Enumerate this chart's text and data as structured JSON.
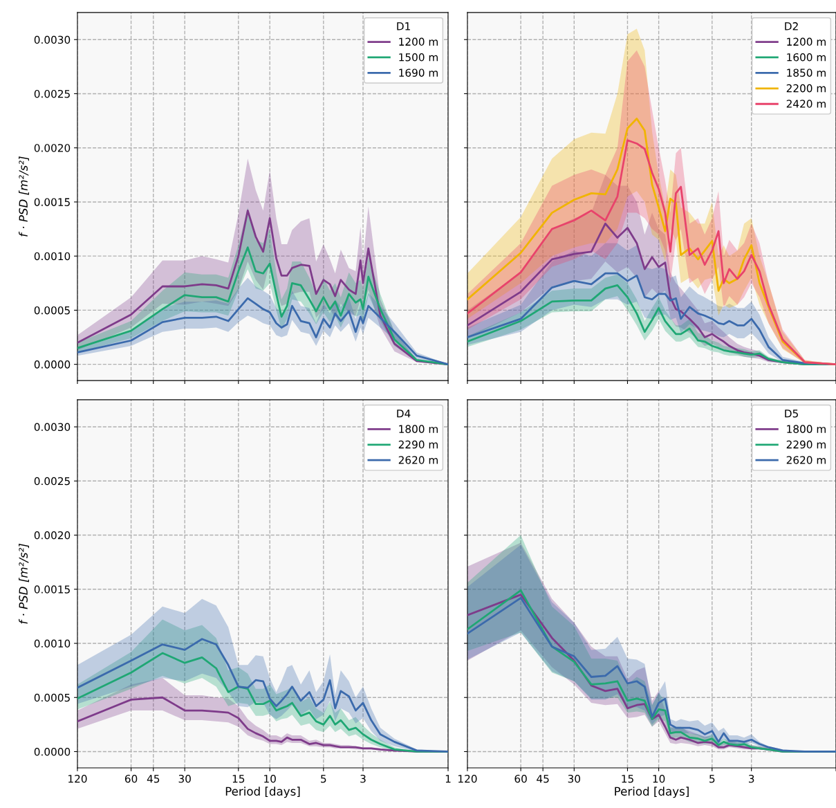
{
  "chart_data": [
    {
      "type": "line",
      "legend_title": "D1",
      "ylabel": "f · PSD [m²/s²]",
      "log": "x",
      "grid": true,
      "legend": "top right",
      "tick_labels": "y",
      "x": [
        120,
        60,
        40,
        30,
        24,
        20,
        17.1,
        15,
        13.3,
        12,
        10.9,
        10,
        9.2,
        8.6,
        8,
        7.5,
        6.7,
        6,
        5.5,
        5,
        4.6,
        4.3,
        4,
        3.6,
        3.3,
        3.1,
        3,
        2.8,
        2.4,
        2,
        1.5,
        1
      ],
      "xlim": [
        120,
        1
      ],
      "xticks": [
        {
          "value": 120,
          "label": null
        },
        {
          "value": 60,
          "label": null
        },
        {
          "value": 45,
          "label": null
        },
        {
          "value": 30,
          "label": null
        },
        {
          "value": 15,
          "label": null
        },
        {
          "value": 10,
          "label": null
        },
        {
          "value": 5,
          "label": null
        },
        {
          "value": 3,
          "label": null
        },
        {
          "value": 1,
          "label": null
        }
      ],
      "ylim": [
        -0.00015,
        0.00325
      ],
      "yticks": [
        {
          "value": 0,
          "label": "0.0000"
        },
        {
          "value": 0.0005,
          "label": "0.0005"
        },
        {
          "value": 0.001,
          "label": "0.0010"
        },
        {
          "value": 0.0015,
          "label": "0.0015"
        },
        {
          "value": 0.002,
          "label": "0.0020"
        },
        {
          "value": 0.0025,
          "label": "0.0025"
        },
        {
          "value": 0.003,
          "label": "0.0030"
        }
      ],
      "series": [
        {
          "name": "1200 m",
          "color": "#7e3b8a",
          "values": [
            0.0002,
            0.00046,
            0.00072,
            0.00072,
            0.00074,
            0.00073,
            0.0007,
            0.001,
            0.00142,
            0.00118,
            0.00104,
            0.00135,
            0.00098,
            0.00082,
            0.00082,
            0.00089,
            0.00092,
            0.00091,
            0.00065,
            0.00078,
            0.00074,
            0.00063,
            0.00078,
            0.00069,
            0.00065,
            0.00096,
            0.00075,
            0.00107,
            0.00045,
            0.00019,
            3e-05,
            0
          ],
          "upper": [
            0.00027,
            0.00062,
            0.00096,
            0.00096,
            0.001,
            0.00097,
            0.00094,
            0.00139,
            0.0019,
            0.00161,
            0.00142,
            0.00179,
            0.00135,
            0.00111,
            0.00111,
            0.00124,
            0.00132,
            0.00135,
            0.00095,
            0.00111,
            0.00097,
            0.00084,
            0.00106,
            0.00089,
            0.00086,
            0.00127,
            0.00095,
            0.00146,
            0.0006,
            0.0003,
            4e-05,
            0
          ],
          "lower": [
            0.00013,
            0.00034,
            0.00056,
            0.00055,
            0.00058,
            0.00056,
            0.00054,
            0.00069,
            0.00095,
            0.00078,
            0.00069,
            0.00095,
            0.00067,
            0.00054,
            0.00056,
            0.00065,
            0.00067,
            0.00067,
            0.00043,
            0.00051,
            0.00051,
            0.00043,
            0.00056,
            0.00047,
            0.00045,
            0.0006,
            0.00054,
            0.00069,
            0.00034,
            0.00012,
            2e-05,
            0
          ]
        },
        {
          "name": "1500 m",
          "color": "#1fa774",
          "values": [
            0.00015,
            0.00031,
            0.00051,
            0.00064,
            0.00062,
            0.00062,
            0.00058,
            0.00086,
            0.00108,
            0.00086,
            0.00084,
            0.00093,
            0.00065,
            0.00044,
            0.00054,
            0.00075,
            0.00073,
            0.0006,
            0.00049,
            0.00062,
            0.00051,
            0.00058,
            0.00045,
            0.00065,
            0.00057,
            0.0006,
            0.00051,
            0.00081,
            0.00051,
            0.00023,
            4e-05,
            0
          ],
          "upper": [
            0.0002,
            0.0004,
            0.00068,
            0.00085,
            0.00083,
            0.00083,
            0.0008,
            0.0011,
            0.00145,
            0.00115,
            0.00112,
            0.00125,
            0.00085,
            0.0006,
            0.0007,
            0.00095,
            0.00095,
            0.0008,
            0.00065,
            0.0008,
            0.00068,
            0.00075,
            0.00062,
            0.00085,
            0.00075,
            0.00078,
            0.0007,
            0.001,
            0.00065,
            0.0003,
            5e-05,
            0
          ],
          "lower": [
            0.00011,
            0.00024,
            0.0004,
            0.00049,
            0.00048,
            0.00048,
            0.00045,
            0.00068,
            0.00088,
            0.0007,
            0.00068,
            0.00075,
            0.0005,
            0.00032,
            0.00042,
            0.0006,
            0.00058,
            0.00047,
            0.00037,
            0.00048,
            0.00039,
            0.00045,
            0.00034,
            0.0005,
            0.00044,
            0.00046,
            0.0004,
            0.00064,
            0.0004,
            0.00017,
            3e-05,
            0
          ]
        },
        {
          "name": "1690 m",
          "color": "#3b6aac",
          "values": [
            0.00011,
            0.00022,
            0.00039,
            0.00043,
            0.00043,
            0.00044,
            0.0004,
            0.00051,
            0.00061,
            0.00056,
            0.00051,
            0.00048,
            0.00038,
            0.00034,
            0.00037,
            0.00054,
            0.0004,
            0.00038,
            0.00025,
            0.00042,
            0.00034,
            0.00047,
            0.0004,
            0.00049,
            0.0003,
            0.00044,
            0.00038,
            0.00054,
            0.00043,
            0.0003,
            8e-05,
            0
          ],
          "upper": [
            0.00014,
            0.0003,
            0.00052,
            0.00058,
            0.00058,
            0.00059,
            0.00056,
            0.0007,
            0.0008,
            0.00072,
            0.00068,
            0.00064,
            0.00052,
            0.00047,
            0.0005,
            0.00068,
            0.00054,
            0.00052,
            0.00038,
            0.00056,
            0.00047,
            0.0006,
            0.00053,
            0.00062,
            0.00042,
            0.00056,
            0.0005,
            0.00066,
            0.00054,
            0.00038,
            0.00011,
            0
          ],
          "lower": [
            8e-05,
            0.00017,
            0.0003,
            0.00033,
            0.00033,
            0.00034,
            0.0003,
            0.00039,
            0.00045,
            0.00042,
            0.00038,
            0.00036,
            0.00027,
            0.00025,
            0.00027,
            0.00041,
            0.0003,
            0.00028,
            0.00017,
            0.00031,
            0.00025,
            0.00036,
            0.0003,
            0.00038,
            0.00021,
            0.00034,
            0.00028,
            0.00043,
            0.00034,
            0.00023,
            5e-05,
            0
          ]
        }
      ]
    },
    {
      "type": "line",
      "legend_title": "D2",
      "log": "x",
      "grid": true,
      "legend": "top right",
      "tick_labels": false,
      "x": [
        120,
        60,
        40,
        30,
        24,
        20,
        17.1,
        15,
        13.3,
        12,
        10.9,
        10,
        9.2,
        8.6,
        8,
        7.5,
        6.7,
        6,
        5.5,
        5,
        4.6,
        4.3,
        4,
        3.6,
        3.3,
        3,
        2.7,
        2.4,
        2,
        1.5,
        1
      ],
      "xlim": [
        120,
        1
      ],
      "xticks": [
        {
          "value": 120,
          "label": null
        },
        {
          "value": 60,
          "label": null
        },
        {
          "value": 45,
          "label": null
        },
        {
          "value": 30,
          "label": null
        },
        {
          "value": 15,
          "label": null
        },
        {
          "value": 10,
          "label": null
        },
        {
          "value": 5,
          "label": null
        },
        {
          "value": 3,
          "label": null
        },
        {
          "value": 1,
          "label": null
        }
      ],
      "ylim": [
        -0.00015,
        0.00325
      ],
      "yticks": [
        {
          "value": 0,
          "label": null
        },
        {
          "value": 0.0005,
          "label": null
        },
        {
          "value": 0.001,
          "label": null
        },
        {
          "value": 0.0015,
          "label": null
        },
        {
          "value": 0.002,
          "label": null
        },
        {
          "value": 0.0025,
          "label": null
        },
        {
          "value": 0.003,
          "label": null
        }
      ],
      "series": [
        {
          "name": "1200 m",
          "color": "#7e3b8a",
          "values": [
            0.00036,
            0.00067,
            0.00097,
            0.00102,
            0.00104,
            0.0013,
            0.00117,
            0.00126,
            0.00112,
            0.00088,
            0.00099,
            0.0009,
            0.00094,
            0.00062,
            0.00051,
            0.00049,
            0.00042,
            0.00034,
            0.00025,
            0.00028,
            0.00024,
            0.00021,
            0.00017,
            0.00013,
            0.00011,
            0.0001,
            8e-05,
            4e-05,
            2e-05,
            0,
            0
          ],
          "upper": [
            0.0005,
            0.00085,
            0.00125,
            0.00135,
            0.0014,
            0.00175,
            0.00165,
            0.00165,
            0.0015,
            0.0012,
            0.0014,
            0.00125,
            0.0012,
            0.00085,
            0.00075,
            0.0007,
            0.0006,
            0.0005,
            0.00038,
            0.0004,
            0.00034,
            0.0003,
            0.00025,
            0.00019,
            0.00016,
            0.00014,
            0.00012,
            6e-05,
            3e-05,
            1e-05,
            0
          ],
          "lower": [
            0.00024,
            0.00048,
            0.00072,
            0.00077,
            0.00079,
            0.00095,
            0.00085,
            0.0009,
            0.0008,
            0.00062,
            0.0007,
            0.00064,
            0.00068,
            0.00043,
            0.00035,
            0.00034,
            0.00029,
            0.00023,
            0.00017,
            0.00019,
            0.00016,
            0.00014,
            0.00011,
            9e-05,
            7e-05,
            6e-05,
            5e-05,
            2e-05,
            1e-05,
            0,
            0
          ]
        },
        {
          "name": "1600 m",
          "color": "#1fa774",
          "values": [
            0.00021,
            0.0004,
            0.00058,
            0.00059,
            0.00059,
            0.0007,
            0.00073,
            0.00062,
            0.00047,
            0.0003,
            0.00041,
            0.00052,
            0.0004,
            0.00034,
            0.00028,
            0.00028,
            0.00033,
            0.00022,
            0.00021,
            0.00017,
            0.00015,
            0.00013,
            0.00012,
            0.00011,
            0.0001,
            9e-05,
            0.0001,
            5e-05,
            2e-05,
            0,
            0
          ],
          "upper": [
            0.00026,
            0.00048,
            0.00068,
            0.0007,
            0.0007,
            0.0008,
            0.00083,
            0.00075,
            0.0006,
            0.0004,
            0.00052,
            0.00062,
            0.0005,
            0.00043,
            0.00036,
            0.00036,
            0.00042,
            0.00029,
            0.00027,
            0.00022,
            0.0002,
            0.00017,
            0.00016,
            0.00015,
            0.00014,
            0.00012,
            0.00013,
            7e-05,
            3e-05,
            1e-05,
            0
          ],
          "lower": [
            0.00016,
            0.00032,
            0.00048,
            0.00049,
            0.00049,
            0.0006,
            0.00063,
            0.0005,
            0.00036,
            0.00022,
            0.00031,
            0.00042,
            0.00031,
            0.00026,
            0.00021,
            0.00021,
            0.00025,
            0.00016,
            0.00015,
            0.00012,
            0.00011,
            9e-05,
            8e-05,
            8e-05,
            7e-05,
            6e-05,
            7e-05,
            3e-05,
            1e-05,
            0,
            0
          ]
        },
        {
          "name": "1850 m",
          "color": "#3b6aac",
          "values": [
            0.00025,
            0.00042,
            0.00071,
            0.00077,
            0.00074,
            0.00084,
            0.00084,
            0.00077,
            0.00082,
            0.00062,
            0.0006,
            0.00065,
            0.00065,
            0.00059,
            0.00061,
            0.00042,
            0.00053,
            0.00047,
            0.00045,
            0.00042,
            0.00038,
            0.00037,
            0.0004,
            0.00036,
            0.00036,
            0.00042,
            0.00032,
            0.00016,
            4e-05,
            1e-05,
            0
          ],
          "upper": [
            0.00034,
            0.00055,
            0.00095,
            0.00105,
            0.001,
            0.00112,
            0.00112,
            0.00105,
            0.0011,
            0.0009,
            0.00088,
            0.0009,
            0.00088,
            0.0008,
            0.00082,
            0.00062,
            0.00072,
            0.00065,
            0.00062,
            0.00058,
            0.00054,
            0.00053,
            0.00056,
            0.00052,
            0.00052,
            0.00058,
            0.00046,
            0.00025,
            7e-05,
            2e-05,
            0
          ],
          "lower": [
            0.00018,
            0.0003,
            0.0005,
            0.00055,
            0.00053,
            0.0006,
            0.0006,
            0.00055,
            0.00058,
            0.00043,
            0.00042,
            0.00046,
            0.00046,
            0.00041,
            0.00043,
            0.00029,
            0.00037,
            0.00032,
            0.00031,
            0.00029,
            0.00026,
            0.00025,
            0.00028,
            0.00024,
            0.00024,
            0.00029,
            0.00021,
            0.0001,
            2e-05,
            0,
            0
          ]
        },
        {
          "name": "2200 m",
          "color": "#f0b400",
          "values": [
            0.0006,
            0.00103,
            0.0014,
            0.00152,
            0.00158,
            0.00157,
            0.0018,
            0.00218,
            0.00227,
            0.00216,
            0.00166,
            0.00145,
            0.00123,
            0.00153,
            0.00149,
            0.00101,
            0.00107,
            0.00097,
            0.00105,
            0.00114,
            0.00068,
            0.00079,
            0.00075,
            0.00079,
            0.00097,
            0.0011,
            0.00075,
            0.00053,
            0.00021,
            2e-05,
            0
          ],
          "upper": [
            0.00084,
            0.00136,
            0.0019,
            0.00208,
            0.00214,
            0.00213,
            0.0025,
            0.00305,
            0.0031,
            0.0029,
            0.00215,
            0.00175,
            0.00145,
            0.0018,
            0.00175,
            0.00145,
            0.0014,
            0.0013,
            0.0013,
            0.0015,
            0.001,
            0.0011,
            0.001,
            0.00105,
            0.0013,
            0.00135,
            0.001,
            0.00075,
            0.0003,
            4e-05,
            0
          ],
          "lower": [
            0.00042,
            0.00075,
            0.001,
            0.00108,
            0.00112,
            0.00112,
            0.00125,
            0.00155,
            0.0016,
            0.0015,
            0.0012,
            0.00115,
            0.00095,
            0.00125,
            0.00115,
            0.00075,
            0.0008,
            0.0007,
            0.00078,
            0.0008,
            0.00045,
            0.00055,
            0.00052,
            0.00055,
            0.00068,
            0.0008,
            0.00055,
            0.00038,
            0.00014,
            1e-05,
            0
          ]
        },
        {
          "name": "2420 m",
          "color": "#e8436b",
          "values": [
            0.00047,
            0.00085,
            0.00125,
            0.00133,
            0.00142,
            0.00133,
            0.00155,
            0.00207,
            0.00204,
            0.00199,
            0.00177,
            0.00162,
            0.0014,
            0.00104,
            0.00158,
            0.00164,
            0.00101,
            0.00107,
            0.00092,
            0.00105,
            0.00123,
            0.00075,
            0.00088,
            0.00079,
            0.00086,
            0.00101,
            0.00086,
            0.00055,
            0.00023,
            2e-05,
            0
          ],
          "upper": [
            0.00065,
            0.00112,
            0.00165,
            0.00175,
            0.0018,
            0.00175,
            0.002,
            0.0028,
            0.0029,
            0.00275,
            0.00235,
            0.002,
            0.0017,
            0.0014,
            0.00195,
            0.002,
            0.0013,
            0.00135,
            0.0012,
            0.00135,
            0.0016,
            0.001,
            0.00115,
            0.00105,
            0.00112,
            0.0013,
            0.00112,
            0.00075,
            0.00032,
            4e-05,
            0
          ],
          "lower": [
            0.00032,
            0.0006,
            0.0009,
            0.00097,
            0.00105,
            0.00097,
            0.00112,
            0.0014,
            0.0014,
            0.00135,
            0.00125,
            0.0012,
            0.00105,
            0.00075,
            0.00115,
            0.00125,
            0.00075,
            0.0008,
            0.00065,
            0.00078,
            0.0009,
            0.00052,
            0.00063,
            0.00055,
            0.00062,
            0.00075,
            0.00062,
            0.00038,
            0.00015,
            1e-05,
            0
          ]
        }
      ]
    },
    {
      "type": "line",
      "legend_title": "D4",
      "xlabel": "Period [days]",
      "ylabel": "f · PSD [m²/s²]",
      "log": "x",
      "grid": true,
      "legend": "top right",
      "x": [
        120,
        60,
        40,
        30,
        24,
        20,
        17.1,
        15,
        13.3,
        12,
        10.9,
        10,
        9.2,
        8.6,
        8,
        7.5,
        6.7,
        6,
        5.5,
        5,
        4.6,
        4.3,
        4,
        3.6,
        3.3,
        3,
        2.7,
        2.4,
        2,
        1.5,
        1
      ],
      "xlim": [
        120,
        1
      ],
      "xticks": [
        120,
        60,
        45,
        30,
        15,
        10,
        5,
        3,
        1
      ],
      "ylim": [
        -0.00015,
        0.00325
      ],
      "yticks": [
        {
          "value": 0,
          "label": "0.0000"
        },
        {
          "value": 0.0005,
          "label": "0.0005"
        },
        {
          "value": 0.001,
          "label": "0.0010"
        },
        {
          "value": 0.0015,
          "label": "0.0015"
        },
        {
          "value": 0.002,
          "label": "0.0020"
        },
        {
          "value": 0.0025,
          "label": "0.0025"
        },
        {
          "value": 0.003,
          "label": "0.0030"
        }
      ],
      "series": [
        {
          "name": "1800 m",
          "color": "#7e3b8a",
          "values": [
            0.00028,
            0.00048,
            0.0005,
            0.00038,
            0.00038,
            0.00037,
            0.00036,
            0.00031,
            0.00021,
            0.00017,
            0.00014,
            0.0001,
            0.0001,
            9e-05,
            0.00013,
            0.00011,
            0.00011,
            7e-05,
            8e-05,
            6e-05,
            6e-05,
            5e-05,
            4e-05,
            4e-05,
            4e-05,
            3e-05,
            3e-05,
            2e-05,
            1e-05,
            0,
            0
          ],
          "upper": [
            0.00038,
            0.00062,
            0.00068,
            0.00052,
            0.00052,
            0.0005,
            0.00049,
            0.00042,
            0.0003,
            0.00024,
            0.0002,
            0.00015,
            0.00015,
            0.00013,
            0.00017,
            0.00015,
            0.00015,
            0.0001,
            0.00011,
            8e-05,
            8e-05,
            7e-05,
            6e-05,
            6e-05,
            5e-05,
            4e-05,
            4e-05,
            3e-05,
            1e-05,
            0,
            0
          ],
          "lower": [
            0.00021,
            0.00038,
            0.00038,
            0.00029,
            0.00029,
            0.00028,
            0.00027,
            0.00023,
            0.00015,
            0.00012,
            0.0001,
            7e-05,
            7e-05,
            6e-05,
            9e-05,
            8e-05,
            8e-05,
            5e-05,
            5e-05,
            4e-05,
            4e-05,
            3e-05,
            3e-05,
            3e-05,
            2e-05,
            2e-05,
            2e-05,
            1e-05,
            0,
            0,
            0
          ]
        },
        {
          "name": "2290 m",
          "color": "#1fa774",
          "values": [
            0.00049,
            0.00073,
            0.00091,
            0.00082,
            0.00087,
            0.00077,
            0.00055,
            0.0006,
            0.00058,
            0.00044,
            0.00044,
            0.00047,
            0.00038,
            0.0004,
            0.00042,
            0.00045,
            0.00033,
            0.00036,
            0.00028,
            0.00025,
            0.00033,
            0.00025,
            0.00029,
            0.0002,
            0.00022,
            0.00016,
            0.00011,
            7e-05,
            2e-05,
            0,
            0
          ],
          "upper": [
            0.00062,
            0.00092,
            0.00122,
            0.00112,
            0.00117,
            0.00105,
            0.00075,
            0.00078,
            0.00072,
            0.00058,
            0.00058,
            0.00062,
            0.00053,
            0.00055,
            0.00057,
            0.0006,
            0.00046,
            0.0005,
            0.0004,
            0.00036,
            0.00046,
            0.00036,
            0.0004,
            0.00029,
            0.00032,
            0.00024,
            0.00017,
            0.00011,
            4e-05,
            0,
            0
          ],
          "lower": [
            0.00039,
            0.00058,
            0.0007,
            0.00063,
            0.00068,
            0.0006,
            0.00042,
            0.00045,
            0.00044,
            0.00033,
            0.00033,
            0.00035,
            0.00028,
            0.0003,
            0.00031,
            0.00034,
            0.00024,
            0.00026,
            0.0002,
            0.00018,
            0.00024,
            0.00018,
            0.00021,
            0.00014,
            0.00016,
            0.00011,
            7e-05,
            4e-05,
            1e-05,
            0,
            0
          ]
        },
        {
          "name": "2620 m",
          "color": "#3b6aac",
          "values": [
            0.00059,
            0.00084,
            0.00099,
            0.00094,
            0.00104,
            0.00099,
            0.0008,
            0.0006,
            0.00059,
            0.00066,
            0.00065,
            0.00049,
            0.00042,
            0.00047,
            0.00053,
            0.0006,
            0.00047,
            0.00055,
            0.00042,
            0.00048,
            0.00066,
            0.0004,
            0.00056,
            0.00051,
            0.00038,
            0.00045,
            0.00029,
            0.00016,
            9e-05,
            1e-05,
            0
          ],
          "upper": [
            0.0008,
            0.00108,
            0.00134,
            0.00128,
            0.00141,
            0.00135,
            0.00115,
            0.0008,
            0.0008,
            0.00089,
            0.00088,
            0.00068,
            0.00055,
            0.00065,
            0.00078,
            0.0008,
            0.00062,
            0.00075,
            0.00055,
            0.00065,
            0.0009,
            0.00052,
            0.00075,
            0.00065,
            0.0005,
            0.0006,
            0.0004,
            0.00022,
            0.00012,
            2e-05,
            0
          ],
          "lower": [
            0.00044,
            0.0006,
            0.00068,
            0.00065,
            0.00072,
            0.00068,
            0.00055,
            0.00042,
            0.00041,
            0.00046,
            0.00045,
            0.00034,
            0.0003,
            0.00033,
            0.00038,
            0.00043,
            0.00034,
            0.00039,
            0.0003,
            0.00034,
            0.00047,
            0.00028,
            0.0004,
            0.00036,
            0.00026,
            0.00031,
            0.00019,
            0.0001,
            5e-05,
            0,
            0
          ]
        }
      ]
    },
    {
      "type": "line",
      "legend_title": "D5",
      "xlabel": "Period [days]",
      "log": "x",
      "grid": true,
      "legend": "top right",
      "tick_labels": "x",
      "x": [
        120,
        60,
        40,
        30,
        24,
        20,
        17.1,
        15,
        13.3,
        12,
        10.9,
        10,
        9.2,
        8.6,
        8,
        7.5,
        6.7,
        6,
        5.5,
        5,
        4.6,
        4.3,
        4,
        3.6,
        3.3,
        3,
        2.7,
        2.4,
        2,
        1.5,
        1
      ],
      "xlim": [
        120,
        1
      ],
      "xticks": [
        120,
        60,
        45,
        30,
        15,
        10,
        5,
        3,
        {
          "value": 1,
          "label": null
        }
      ],
      "ylim": [
        -0.00015,
        0.00325
      ],
      "yticks": [
        {
          "value": 0,
          "label": null
        },
        {
          "value": 0.0005,
          "label": null
        },
        {
          "value": 0.001,
          "label": null
        },
        {
          "value": 0.0015,
          "label": null
        },
        {
          "value": 0.002,
          "label": null
        },
        {
          "value": 0.0025,
          "label": null
        },
        {
          "value": 0.003,
          "label": null
        }
      ],
      "series": [
        {
          "name": "1800 m",
          "color": "#7e3b8a",
          "values": [
            0.00126,
            0.00145,
            0.00105,
            0.00084,
            0.00061,
            0.00056,
            0.00058,
            0.0004,
            0.00043,
            0.00044,
            0.0003,
            0.00034,
            0.00023,
            0.00013,
            0.00011,
            0.00013,
            0.00011,
            8e-05,
            9e-05,
            8e-05,
            4e-05,
            4e-05,
            6e-05,
            5e-05,
            4e-05,
            3e-05,
            3e-05,
            2e-05,
            0,
            0,
            0
          ],
          "upper": [
            0.00171,
            0.00193,
            0.00141,
            0.00119,
            0.00097,
            0.00088,
            0.00088,
            0.00067,
            0.00075,
            0.00078,
            0.00047,
            0.00056,
            0.00038,
            0.00023,
            0.00021,
            0.00022,
            0.00019,
            0.00016,
            0.00014,
            0.00014,
            8e-05,
            8e-05,
            0.0001,
            8e-05,
            7e-05,
            6e-05,
            5e-05,
            4e-05,
            1e-05,
            0,
            0
          ],
          "lower": [
            0.00084,
            0.00112,
            0.00078,
            0.00062,
            0.00045,
            0.00043,
            0.00044,
            0.00031,
            0.00032,
            0.00034,
            0.00023,
            0.00028,
            0.00017,
            8e-05,
            7e-05,
            8e-05,
            7e-05,
            5e-05,
            6e-05,
            5e-05,
            2e-05,
            2e-05,
            4e-05,
            3e-05,
            2e-05,
            2e-05,
            2e-05,
            1e-05,
            0,
            0,
            0
          ]
        },
        {
          "name": "2290 m",
          "color": "#1fa774",
          "values": [
            0.00113,
            0.00149,
            0.00097,
            0.00083,
            0.00062,
            0.00063,
            0.00065,
            0.00047,
            0.00049,
            0.00047,
            0.0003,
            0.00039,
            0.00038,
            0.00017,
            0.00018,
            0.00018,
            0.00013,
            0.00012,
            0.0001,
            0.00012,
            6e-05,
            9e-05,
            7e-05,
            6e-05,
            7e-05,
            4e-05,
            3e-05,
            2e-05,
            0,
            0,
            0
          ],
          "upper": [
            0.00156,
            0.002,
            0.00134,
            0.00116,
            0.00086,
            0.00086,
            0.00084,
            0.00062,
            0.00069,
            0.00065,
            0.00043,
            0.00054,
            0.00047,
            0.00022,
            0.00023,
            0.00023,
            0.00017,
            0.00016,
            0.00013,
            0.00016,
            9e-05,
            0.00012,
            0.0001,
            9e-05,
            0.0001,
            6e-05,
            5e-05,
            3e-05,
            1e-05,
            0,
            0
          ],
          "lower": [
            0.00093,
            0.0011,
            0.00073,
            0.00065,
            0.00049,
            0.00049,
            0.0005,
            0.00036,
            0.00037,
            0.00036,
            0.00023,
            0.0003,
            0.00028,
            0.00012,
            0.00013,
            0.00013,
            9e-05,
            8e-05,
            7e-05,
            8e-05,
            4e-05,
            6e-05,
            5e-05,
            4e-05,
            5e-05,
            3e-05,
            2e-05,
            1e-05,
            0,
            0,
            0
          ]
        },
        {
          "name": "2620 m",
          "color": "#3b6aac",
          "values": [
            0.00109,
            0.00142,
            0.00097,
            0.00088,
            0.00069,
            0.0007,
            0.00079,
            0.00063,
            0.00065,
            0.0006,
            0.00032,
            0.00045,
            0.00049,
            0.00025,
            0.00022,
            0.00022,
            0.00022,
            0.0002,
            0.00016,
            0.00019,
            9e-05,
            0.00017,
            0.0001,
            0.0001,
            9e-05,
            0.00011,
            7e-05,
            4e-05,
            1e-05,
            0,
            0
          ],
          "upper": [
            0.00152,
            0.00191,
            0.00138,
            0.00119,
            0.00094,
            0.00095,
            0.00106,
            0.00086,
            0.00085,
            0.00081,
            0.00043,
            0.00055,
            0.00065,
            0.0003,
            0.00028,
            0.0003,
            0.00028,
            0.00029,
            0.00024,
            0.00027,
            0.00019,
            0.00022,
            0.00015,
            0.00015,
            0.00013,
            0.00016,
            9e-05,
            5e-05,
            2e-05,
            0,
            0
          ],
          "lower": [
            0.00085,
            0.0011,
            0.00074,
            0.00065,
            0.00048,
            0.00048,
            0.00053,
            0.00041,
            0.00041,
            0.00038,
            0.00025,
            0.00032,
            0.00034,
            0.00019,
            0.00017,
            0.00017,
            0.00017,
            0.00015,
            0.00012,
            0.00014,
            6e-05,
            0.00012,
            7e-05,
            7e-05,
            6e-05,
            8e-05,
            5e-05,
            3e-05,
            1e-05,
            0,
            0
          ]
        }
      ]
    }
  ]
}
